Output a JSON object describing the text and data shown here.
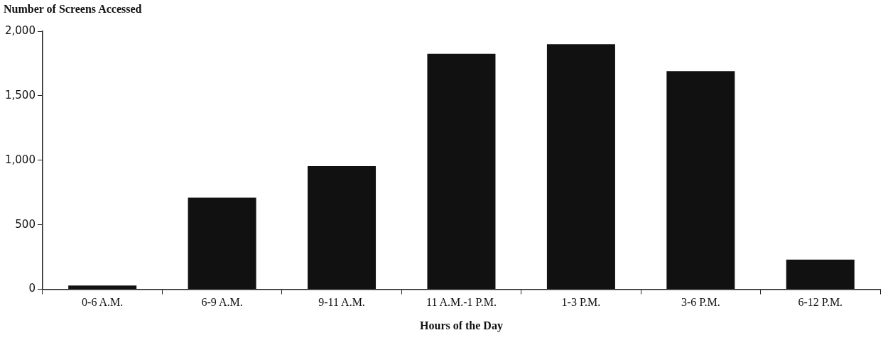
{
  "chart_data": {
    "type": "bar",
    "ylabel": "Number of Screens Accessed",
    "xlabel": "Hours of the Day",
    "categories": [
      "0-6 A.M.",
      "6-9 A.M.",
      "9-11 A.M.",
      "11 A.M.-1 P.M.",
      "1-3 P.M.",
      "3-6 P.M.",
      "6-12 P.M."
    ],
    "values": [
      30,
      710,
      955,
      1825,
      1900,
      1690,
      230
    ],
    "color": "#111111",
    "ylim": [
      0,
      2000
    ],
    "yticks": [
      0,
      500,
      {
        "value": 1000,
        "label": "1,000"
      },
      {
        "value": 1500,
        "label": "1,500"
      },
      {
        "value": 2000,
        "label": "2,000"
      }
    ],
    "grid": false,
    "legend": false
  }
}
